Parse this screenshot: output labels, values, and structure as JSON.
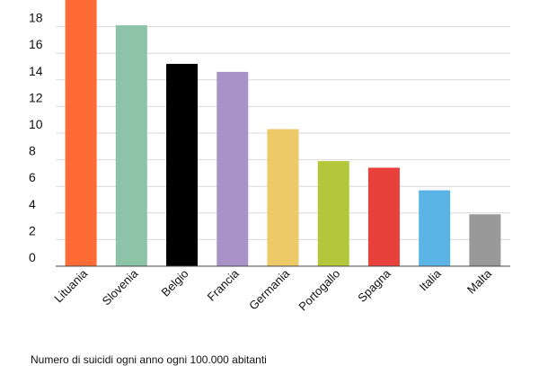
{
  "chart_data": {
    "type": "bar",
    "categories": [
      "Lituania",
      "Slovenia",
      "Belgio",
      "Francia",
      "Germania",
      "Portogallo",
      "Spagna",
      "Italia",
      "Malta"
    ],
    "values": [
      20.0,
      18.1,
      15.2,
      14.6,
      10.3,
      7.9,
      7.4,
      5.7,
      3.9
    ],
    "colors": [
      "#FF6B35",
      "#8DC3A7",
      "#000000",
      "#A992C8",
      "#EDC967",
      "#B2C73A",
      "#E8403A",
      "#5AB4E5",
      "#999999"
    ],
    "y_ticks": [
      0,
      2,
      4,
      6,
      8,
      10,
      12,
      14,
      16,
      18
    ],
    "ylim": [
      0,
      20
    ],
    "grid": true,
    "legend": "none"
  },
  "caption": "Numero di suicidi ogni anno ogni 100.000 abitanti"
}
